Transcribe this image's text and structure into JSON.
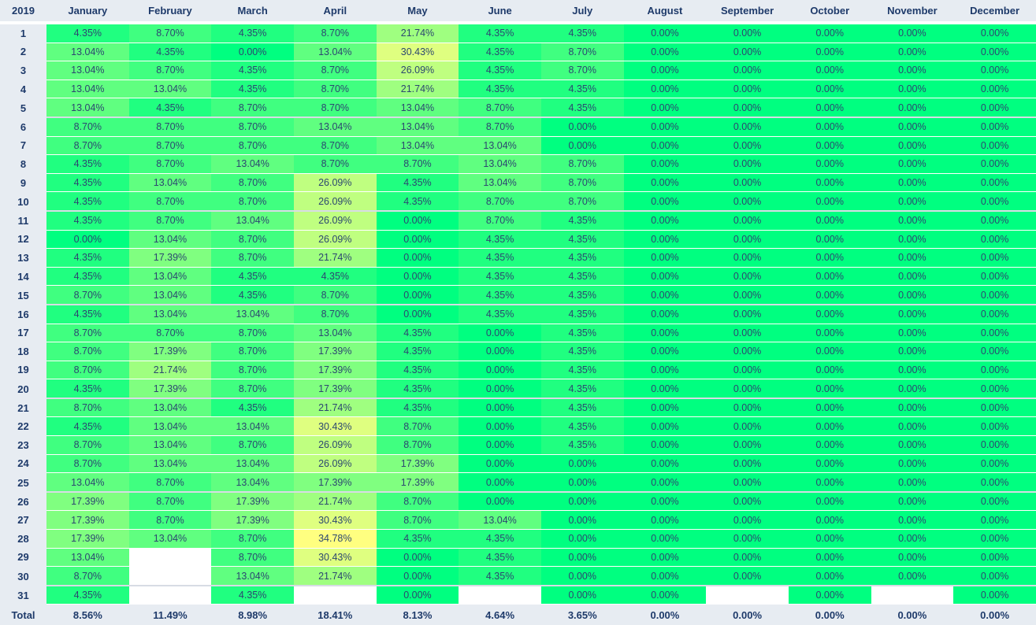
{
  "year_label": "2019",
  "total_label": "Total",
  "months": [
    "January",
    "February",
    "March",
    "April",
    "May",
    "June",
    "July",
    "August",
    "September",
    "October",
    "November",
    "December"
  ],
  "rows": [
    [
      "4.35%",
      "8.70%",
      "4.35%",
      "8.70%",
      "21.74%",
      "4.35%",
      "4.35%",
      "0.00%",
      "0.00%",
      "0.00%",
      "0.00%",
      "0.00%"
    ],
    [
      "13.04%",
      "4.35%",
      "0.00%",
      "13.04%",
      "30.43%",
      "4.35%",
      "8.70%",
      "0.00%",
      "0.00%",
      "0.00%",
      "0.00%",
      "0.00%"
    ],
    [
      "13.04%",
      "8.70%",
      "4.35%",
      "8.70%",
      "26.09%",
      "4.35%",
      "8.70%",
      "0.00%",
      "0.00%",
      "0.00%",
      "0.00%",
      "0.00%"
    ],
    [
      "13.04%",
      "13.04%",
      "4.35%",
      "8.70%",
      "21.74%",
      "4.35%",
      "4.35%",
      "0.00%",
      "0.00%",
      "0.00%",
      "0.00%",
      "0.00%"
    ],
    [
      "13.04%",
      "4.35%",
      "8.70%",
      "8.70%",
      "13.04%",
      "8.70%",
      "4.35%",
      "0.00%",
      "0.00%",
      "0.00%",
      "0.00%",
      "0.00%"
    ],
    [
      "8.70%",
      "8.70%",
      "8.70%",
      "13.04%",
      "13.04%",
      "8.70%",
      "0.00%",
      "0.00%",
      "0.00%",
      "0.00%",
      "0.00%",
      "0.00%"
    ],
    [
      "8.70%",
      "8.70%",
      "8.70%",
      "8.70%",
      "13.04%",
      "13.04%",
      "0.00%",
      "0.00%",
      "0.00%",
      "0.00%",
      "0.00%",
      "0.00%"
    ],
    [
      "4.35%",
      "8.70%",
      "13.04%",
      "8.70%",
      "8.70%",
      "13.04%",
      "8.70%",
      "0.00%",
      "0.00%",
      "0.00%",
      "0.00%",
      "0.00%"
    ],
    [
      "4.35%",
      "13.04%",
      "8.70%",
      "26.09%",
      "4.35%",
      "13.04%",
      "8.70%",
      "0.00%",
      "0.00%",
      "0.00%",
      "0.00%",
      "0.00%"
    ],
    [
      "4.35%",
      "8.70%",
      "8.70%",
      "26.09%",
      "4.35%",
      "8.70%",
      "8.70%",
      "0.00%",
      "0.00%",
      "0.00%",
      "0.00%",
      "0.00%"
    ],
    [
      "4.35%",
      "8.70%",
      "13.04%",
      "26.09%",
      "0.00%",
      "8.70%",
      "4.35%",
      "0.00%",
      "0.00%",
      "0.00%",
      "0.00%",
      "0.00%"
    ],
    [
      "0.00%",
      "13.04%",
      "8.70%",
      "26.09%",
      "0.00%",
      "4.35%",
      "4.35%",
      "0.00%",
      "0.00%",
      "0.00%",
      "0.00%",
      "0.00%"
    ],
    [
      "4.35%",
      "17.39%",
      "8.70%",
      "21.74%",
      "0.00%",
      "4.35%",
      "4.35%",
      "0.00%",
      "0.00%",
      "0.00%",
      "0.00%",
      "0.00%"
    ],
    [
      "4.35%",
      "13.04%",
      "4.35%",
      "4.35%",
      "0.00%",
      "4.35%",
      "4.35%",
      "0.00%",
      "0.00%",
      "0.00%",
      "0.00%",
      "0.00%"
    ],
    [
      "8.70%",
      "13.04%",
      "4.35%",
      "8.70%",
      "0.00%",
      "4.35%",
      "4.35%",
      "0.00%",
      "0.00%",
      "0.00%",
      "0.00%",
      "0.00%"
    ],
    [
      "4.35%",
      "13.04%",
      "13.04%",
      "8.70%",
      "0.00%",
      "4.35%",
      "4.35%",
      "0.00%",
      "0.00%",
      "0.00%",
      "0.00%",
      "0.00%"
    ],
    [
      "8.70%",
      "8.70%",
      "8.70%",
      "13.04%",
      "4.35%",
      "0.00%",
      "4.35%",
      "0.00%",
      "0.00%",
      "0.00%",
      "0.00%",
      "0.00%"
    ],
    [
      "8.70%",
      "17.39%",
      "8.70%",
      "17.39%",
      "4.35%",
      "0.00%",
      "4.35%",
      "0.00%",
      "0.00%",
      "0.00%",
      "0.00%",
      "0.00%"
    ],
    [
      "8.70%",
      "21.74%",
      "8.70%",
      "17.39%",
      "4.35%",
      "0.00%",
      "4.35%",
      "0.00%",
      "0.00%",
      "0.00%",
      "0.00%",
      "0.00%"
    ],
    [
      "4.35%",
      "17.39%",
      "8.70%",
      "17.39%",
      "4.35%",
      "0.00%",
      "4.35%",
      "0.00%",
      "0.00%",
      "0.00%",
      "0.00%",
      "0.00%"
    ],
    [
      "8.70%",
      "13.04%",
      "4.35%",
      "21.74%",
      "4.35%",
      "0.00%",
      "4.35%",
      "0.00%",
      "0.00%",
      "0.00%",
      "0.00%",
      "0.00%"
    ],
    [
      "4.35%",
      "13.04%",
      "13.04%",
      "30.43%",
      "8.70%",
      "0.00%",
      "4.35%",
      "0.00%",
      "0.00%",
      "0.00%",
      "0.00%",
      "0.00%"
    ],
    [
      "8.70%",
      "13.04%",
      "8.70%",
      "26.09%",
      "8.70%",
      "0.00%",
      "4.35%",
      "0.00%",
      "0.00%",
      "0.00%",
      "0.00%",
      "0.00%"
    ],
    [
      "8.70%",
      "13.04%",
      "13.04%",
      "26.09%",
      "17.39%",
      "0.00%",
      "0.00%",
      "0.00%",
      "0.00%",
      "0.00%",
      "0.00%",
      "0.00%"
    ],
    [
      "13.04%",
      "8.70%",
      "13.04%",
      "17.39%",
      "17.39%",
      "0.00%",
      "0.00%",
      "0.00%",
      "0.00%",
      "0.00%",
      "0.00%",
      "0.00%"
    ],
    [
      "17.39%",
      "8.70%",
      "17.39%",
      "21.74%",
      "8.70%",
      "0.00%",
      "0.00%",
      "0.00%",
      "0.00%",
      "0.00%",
      "0.00%",
      "0.00%"
    ],
    [
      "17.39%",
      "8.70%",
      "17.39%",
      "30.43%",
      "8.70%",
      "13.04%",
      "0.00%",
      "0.00%",
      "0.00%",
      "0.00%",
      "0.00%",
      "0.00%"
    ],
    [
      "17.39%",
      "13.04%",
      "8.70%",
      "34.78%",
      "4.35%",
      "4.35%",
      "0.00%",
      "0.00%",
      "0.00%",
      "0.00%",
      "0.00%",
      "0.00%"
    ],
    [
      "13.04%",
      "",
      "8.70%",
      "30.43%",
      "0.00%",
      "4.35%",
      "0.00%",
      "0.00%",
      "0.00%",
      "0.00%",
      "0.00%",
      "0.00%"
    ],
    [
      "8.70%",
      "",
      "13.04%",
      "21.74%",
      "0.00%",
      "4.35%",
      "0.00%",
      "0.00%",
      "0.00%",
      "0.00%",
      "0.00%",
      "0.00%"
    ],
    [
      "4.35%",
      "",
      "4.35%",
      "",
      "0.00%",
      "",
      "0.00%",
      "0.00%",
      "",
      "0.00%",
      "",
      "0.00%"
    ]
  ],
  "totals": [
    "8.56%",
    "11.49%",
    "8.98%",
    "18.41%",
    "8.13%",
    "4.64%",
    "3.65%",
    "0.00%",
    "0.00%",
    "0.00%",
    "0.00%",
    "0.00%"
  ],
  "colors": {
    "scale_low": "#00ff80",
    "scale_high": "#ffff80",
    "scale_max_value": 34.78,
    "header_bg": "#e7ecf2",
    "header_text": "#1e3a6a",
    "cell_text": "#2c4670",
    "empty_cell": "#ffffff"
  }
}
